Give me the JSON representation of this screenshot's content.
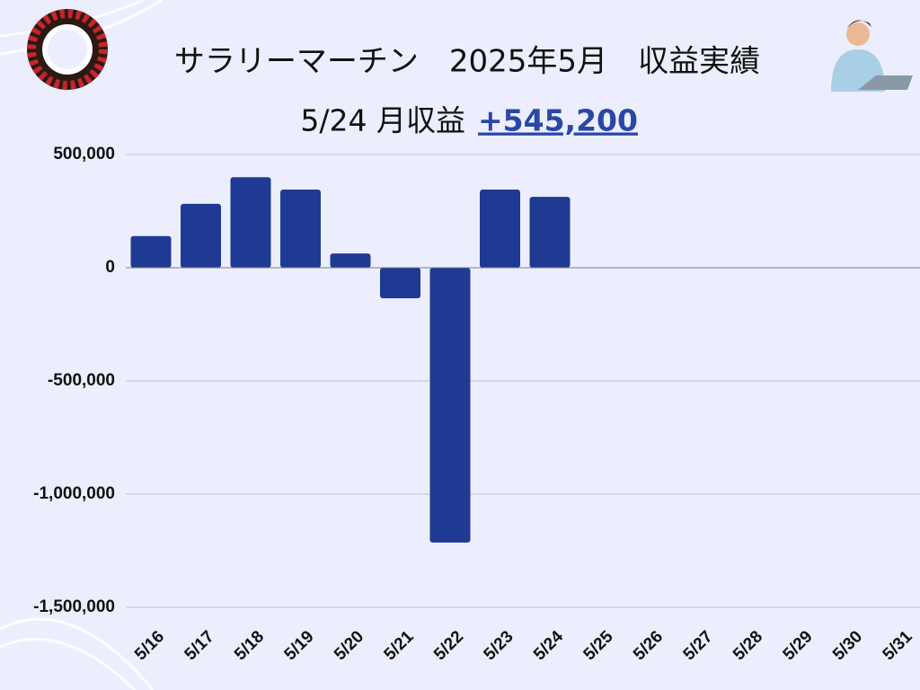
{
  "chart_data": {
    "type": "bar",
    "title": "サラリーマーチン　2025年5月　収益実績",
    "subtitle": "5/24 月収益",
    "total_label": "+545,200",
    "categories": [
      "5/16",
      "5/17",
      "5/18",
      "5/19",
      "5/20",
      "5/21",
      "5/22",
      "5/23",
      "5/24",
      "5/25",
      "5/26",
      "5/27",
      "5/28",
      "5/29",
      "5/30",
      "5/31"
    ],
    "values": [
      140000,
      282000,
      400000,
      345000,
      63000,
      -135000,
      -1214000,
      345000,
      313000,
      null,
      null,
      null,
      null,
      null,
      null,
      null
    ],
    "color": "#1f3a93",
    "ylim": [
      -1500000,
      500000
    ],
    "yticks": [
      {
        "value": -1500000,
        "label": "-1,500,000"
      },
      {
        "value": -1000000,
        "label": "-1,000,000"
      },
      {
        "value": -500000,
        "label": "-500,000"
      },
      0,
      {
        "value": 500000,
        "label": "500,000"
      }
    ],
    "grid": true
  }
}
